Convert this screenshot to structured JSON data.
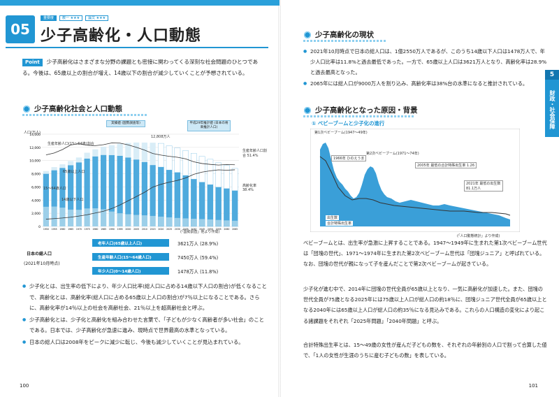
{
  "left": {
    "chapter_num": "05",
    "tags": [
      "重要度",
      "教一 ★★★",
      "論文 ★★★"
    ],
    "title": "少子高齢化・人口動態",
    "point_badge": "Point",
    "point_text": "少子高齢化はさまざまな分野の課題とも密接に関わってくる深刻な社会問題のひとつである。今後は、65歳以上の割合が増え、14歳以下の割合が減少していくことが予想されている。",
    "section1": "少子高齢化社会と人口動態",
    "chart": {
      "callout_left": "実績値\n(国勢調査等)",
      "callout_right": "平成29年推計値\n(日本の将来推計人口)",
      "y_unit": "人口(万人)",
      "y_ticks": [
        "14,000",
        "12,000",
        "10,000",
        "8,000",
        "6,000",
        "4,000",
        "2,000",
        "0"
      ],
      "label_birth": "生産年齢人口(15〜64歳)割合",
      "label_old": "65歳以上人口",
      "label_work": "15〜64歳人口",
      "label_young": "14歳以下人口",
      "label_aging": "高齢化率(65歳以上人口割合)",
      "peak_label": "12,808万人",
      "right_labels": [
        "生産年齢人口割合 51.4%",
        "高齢化率 38.4%"
      ],
      "source": "(「国勢調査」他より作成)"
    },
    "legend": {
      "title": "日本の総人口",
      "sub": "(2021年10月時点)",
      "rows": [
        {
          "label": "老年人口(65歳以上人口)",
          "value": "3621万人 (28.9%)"
        },
        {
          "label": "生産年齢人口(15〜64歳人口)",
          "value": "7450万人 (59.4%)"
        },
        {
          "label": "年少人口(0〜14歳人口)",
          "value": "1478万人 (11.8%)"
        }
      ]
    },
    "bullets": [
      "少子化とは、出生率の低下により、年少人口比率(総人口に占める14歳以下人口の割合)が低くなることで、高齢化とは、高齢化率(総人口に占める65歳以上人口の割合)が7％以上になることである。さらに、高齢化率が14％以上の社会を高齢社会、21％以上を超高齢社会と呼ぶ。",
      "少子高齢化とは、少子化と高齢化を組み合わせた言葉で、「子どもが少なく高齢者が多い社会」のことである。日本では、少子高齢化が急速に進み、現時点で世界最高の水準となっている。",
      "日本の総人口は2008年をピークに減少に転じ、今後も減少していくことが見込まれている。"
    ],
    "page_num": "100"
  },
  "right": {
    "section1": "少子高齢化の現状",
    "bullets1": [
      "2021年10月時点で日本の総人口は、1億2550万人であるが、このうち14歳以下人口は1478万人で、年少人口比率は11.8%と過去最低であった。一方で、65歳以上人口は3621万人となり、高齢化率は28.9%と過去最高となった。",
      "2065年には総人口が9000万人を割り込み、高齢化率は38%台の水準になると推計されている。"
    ],
    "section2": "少子高齢化となった原因・背景",
    "sub1": "① ベビーブームと少子化の進行",
    "chart2": {
      "y_unit": "万人",
      "labels": [
        "第1次ベビーブーム(1947〜49年)",
        "第2次ベビーブーム(1971〜74年)",
        "1966年 ひのえうま",
        "2005年 最低の合計特殊出生率 1.26",
        "2021年 最低の出生数 81.1万人"
      ],
      "legend": [
        "出生数",
        "合計特殊出生率"
      ],
      "source": "(「人口動態統計」より作成)"
    },
    "paras": [
      "ベビーブームとは、出生率が急激に上昇することである。1947〜1949年に生まれた第1次ベビーブーム世代は「団塊の世代」、1971〜1974年に生まれた第2次ベビーブーム世代は「団塊ジュニア」と呼ばれている。なお、団塊の世代が親になって子を産んだことで第2次ベビーブームが起きている。",
      "少子化が進む中で、2014年に団塊の世代全員が65歳以上となり、一気に高齢化が加速した。また、団塊の世代全員が75歳となる2025年には75歳以上人口が総人口の約18％に、団塊ジュニア世代全員が65歳以上となる2040年には65歳以上人口が総人口の約35％になる見込みである。これらの人口構造の変化により起こる諸課題をそれぞれ「2025年問題」「2040年問題」と呼ぶ。",
      "合計特殊出生率とは、15〜49歳の女性が産んだ子どもの数を、それぞれの年齢別の人口で割って合算した値で、「1人の女性が生涯のうちに産む子どもの数」を表している。"
    ],
    "side_num": "5",
    "side_tab": "財政・社会保障",
    "page_num": "101"
  },
  "chart_data": {
    "type": "bar",
    "categories": [
      "1950",
      "1955",
      "1960",
      "1965",
      "1970",
      "1975",
      "1980",
      "1985",
      "1990",
      "1995",
      "2000",
      "2005",
      "2010",
      "2015",
      "2020",
      "2025",
      "2030",
      "2035",
      "2040",
      "2045",
      "2050",
      "2055",
      "2060",
      "2065"
    ],
    "series": [
      {
        "name": "14歳以下人口",
        "values": [
          2979,
          3012,
          2843,
          2553,
          2515,
          2722,
          2751,
          2603,
          2249,
          2001,
          1847,
          1752,
          1680,
          1595,
          1503,
          1407,
          1321,
          1246,
          1194,
          1138,
          1077,
          1012,
          951,
          898
        ]
      },
      {
        "name": "15〜64歳人口",
        "values": [
          5017,
          5517,
          6047,
          6744,
          7212,
          7581,
          7883,
          8251,
          8590,
          8726,
          8622,
          8409,
          8103,
          7728,
          7509,
          7170,
          6875,
          6494,
          5978,
          5584,
          5275,
          4946,
          4793,
          4529
        ]
      },
      {
        "name": "65歳以上人口",
        "values": [
          416,
          479,
          540,
          624,
          739,
          887,
          1065,
          1247,
          1493,
          1828,
          2204,
          2576,
          2948,
          3387,
          3603,
          3677,
          3716,
          3782,
          3921,
          3919,
          3841,
          3704,
          3540,
          3381
        ]
      }
    ],
    "ylim": [
      0,
      14000
    ]
  }
}
